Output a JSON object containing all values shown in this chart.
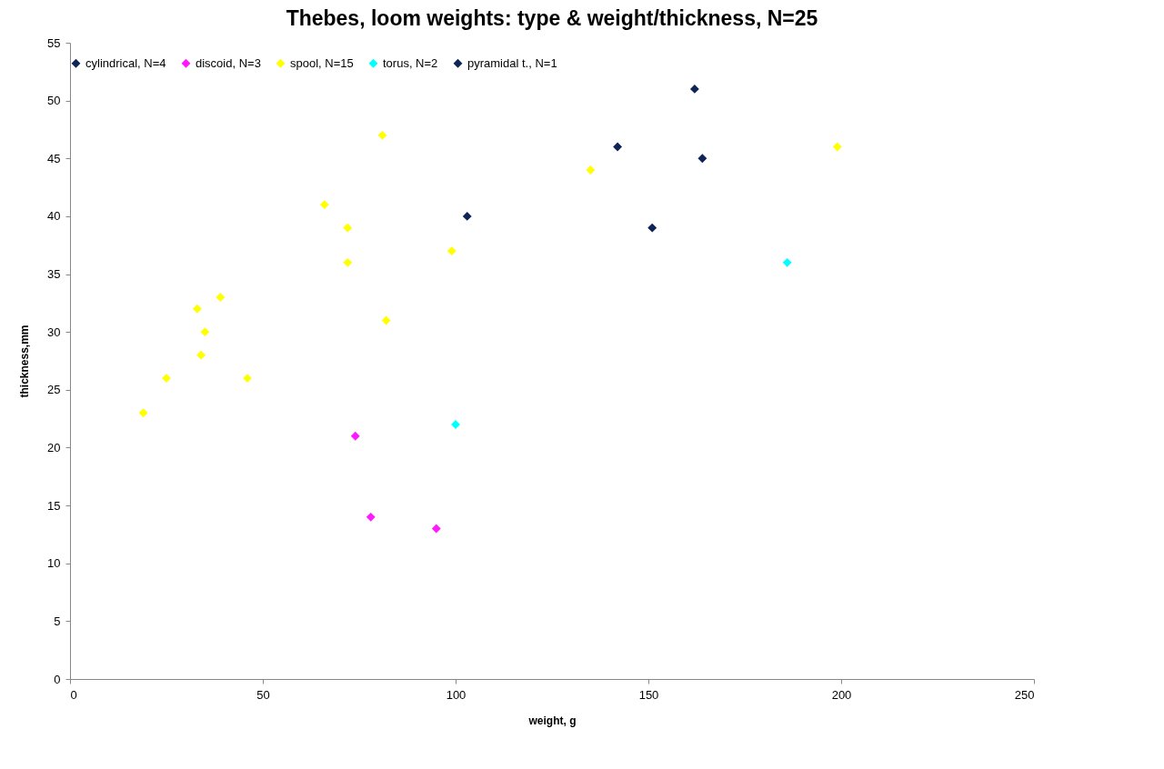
{
  "chart_data": {
    "type": "scatter",
    "title": "Thebes, loom weights: type & weight/thickness, N=25",
    "xlabel": "weight, g",
    "ylabel": "thickness,mm",
    "xlim": [
      0,
      250
    ],
    "xticks": [
      0,
      50,
      100,
      150,
      200,
      250
    ],
    "ylim": [
      0,
      55
    ],
    "yticks": [
      0,
      5,
      10,
      15,
      20,
      25,
      30,
      35,
      40,
      45,
      50,
      55
    ],
    "grid": false,
    "legend": "top",
    "marker": "diamond",
    "series": [
      {
        "name": "cylindrical, N=4",
        "color": "#0f2557",
        "x": [
          103,
          142,
          162,
          164
        ],
        "values": [
          40,
          46,
          51,
          45
        ]
      },
      {
        "name": "discoid, N=3",
        "color": "#ff1aff",
        "x": [
          74,
          78,
          95
        ],
        "values": [
          21,
          14,
          13
        ]
      },
      {
        "name": "spool, N=15",
        "color": "#ffff00",
        "x": [
          19,
          25,
          33,
          34,
          35,
          39,
          46,
          66,
          72,
          72,
          81,
          82,
          99,
          135,
          199
        ],
        "values": [
          23,
          26,
          32,
          28,
          30,
          33,
          26,
          41,
          39,
          36,
          47,
          31,
          37,
          44,
          46
        ]
      },
      {
        "name": "torus, N=2",
        "color": "#00ffff",
        "x": [
          100,
          186
        ],
        "values": [
          22,
          36
        ]
      },
      {
        "name": "pyramidal t., N=1",
        "color": "#0f2557",
        "x": [
          151
        ],
        "values": [
          39
        ]
      }
    ]
  }
}
